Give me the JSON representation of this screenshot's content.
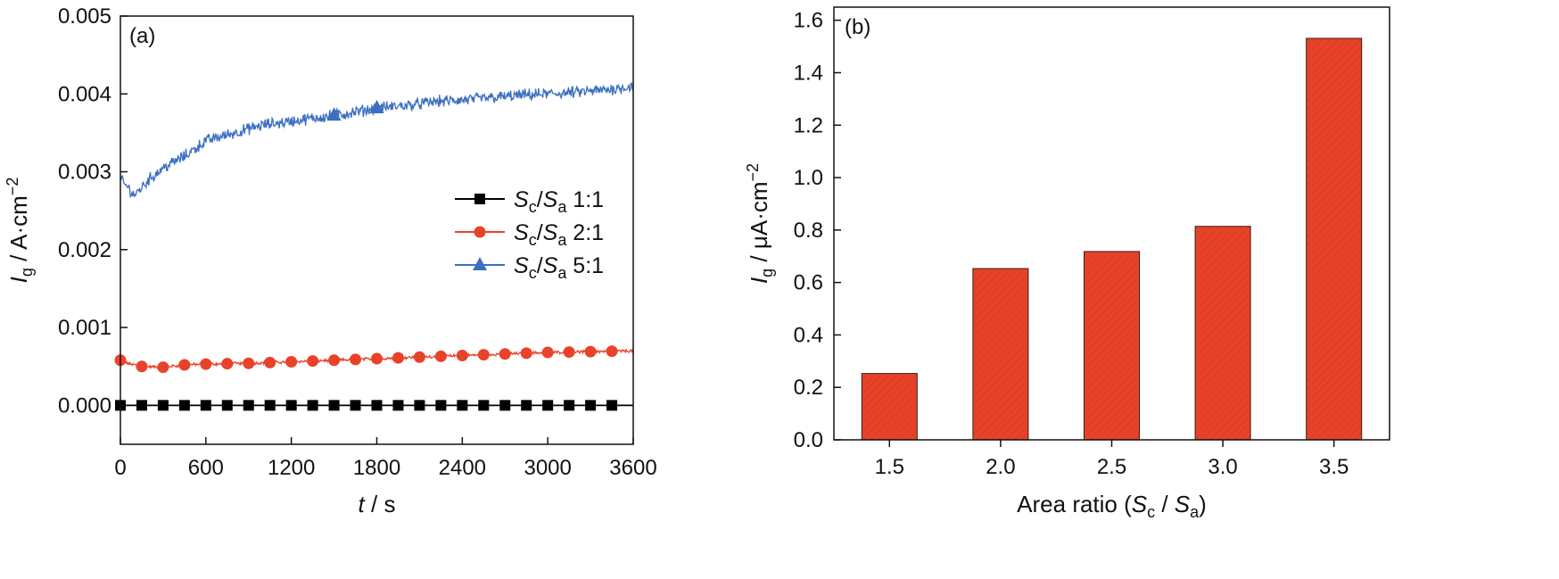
{
  "chart_data": [
    {
      "type": "line",
      "panel_label": "(a)",
      "xlabel": {
        "var": "t",
        "unit": " / s"
      },
      "ylabel": {
        "var": "I",
        "sub": "g",
        "unit": " / A·cm",
        "sup": "−2"
      },
      "xlim": [
        0,
        3600
      ],
      "ylim": [
        -0.0005,
        0.005
      ],
      "x_ticks": [
        "0",
        "600",
        "1200",
        "1800",
        "2400",
        "3000",
        "3600"
      ],
      "y_ticks": [
        "0.000",
        "0.001",
        "0.002",
        "0.003",
        "0.004",
        "0.005"
      ],
      "grid": false,
      "legend_position": "center-right",
      "series": [
        {
          "name": "Sc/Sa 1:1",
          "legend": {
            "S1": "S",
            "sub1": "c",
            "slash": "/",
            "S2": "S",
            "sub2": "a",
            "ratio": " 1:1"
          },
          "color": "#000000",
          "marker": "square",
          "noise": 0,
          "x": [
            0,
            3600
          ],
          "y": [
            0.0,
            0.0
          ],
          "marker_x": [
            0,
            150,
            300,
            450,
            600,
            750,
            900,
            1050,
            1200,
            1350,
            1500,
            1650,
            1800,
            1950,
            2100,
            2250,
            2400,
            2550,
            2700,
            2850,
            3000,
            3150,
            3300,
            3450
          ]
        },
        {
          "name": "Sc/Sa 2:1",
          "legend": {
            "S1": "S",
            "sub1": "c",
            "slash": "/",
            "S2": "S",
            "sub2": "a",
            "ratio": " 2:1"
          },
          "color": "#e8432a",
          "marker": "circle",
          "noise": 1.5e-05,
          "x": [
            0,
            50,
            150,
            300,
            450,
            600,
            900,
            1200,
            1500,
            1800,
            2100,
            2400,
            2700,
            3000,
            3300,
            3600
          ],
          "y": [
            0.00058,
            0.00054,
            0.0005,
            0.00049,
            0.00052,
            0.00053,
            0.00054,
            0.00056,
            0.00058,
            0.0006,
            0.00062,
            0.00064,
            0.00066,
            0.00068,
            0.00069,
            0.0007
          ],
          "marker_x": [
            0,
            150,
            300,
            450,
            600,
            750,
            900,
            1050,
            1200,
            1350,
            1500,
            1650,
            1800,
            1950,
            2100,
            2250,
            2400,
            2550,
            2700,
            2850,
            3000,
            3150,
            3300,
            3450
          ]
        },
        {
          "name": "Sc/Sa 5:1",
          "legend": {
            "S1": "S",
            "sub1": "c",
            "slash": "/",
            "S2": "S",
            "sub2": "a",
            "ratio": " 5:1"
          },
          "color": "#3d6fc1",
          "marker": "triangle",
          "noise": 6e-05,
          "x": [
            0,
            50,
            100,
            200,
            300,
            450,
            600,
            800,
            1000,
            1200,
            1400,
            1600,
            1800,
            2000,
            2200,
            2400,
            2600,
            2800,
            3000,
            3200,
            3400,
            3600
          ],
          "y": [
            0.0029,
            0.0028,
            0.0027,
            0.0029,
            0.00305,
            0.0032,
            0.0034,
            0.0035,
            0.0036,
            0.00365,
            0.0037,
            0.00375,
            0.00382,
            0.00385,
            0.0039,
            0.00392,
            0.00395,
            0.00398,
            0.004,
            0.00402,
            0.00405,
            0.0041
          ],
          "marker_x": [
            1500,
            1800
          ]
        }
      ]
    },
    {
      "type": "bar",
      "panel_label": "(b)",
      "xlabel": {
        "text": "Area ratio (",
        "S1": "S",
        "sub1": "c",
        "mid": " / ",
        "S2": "S",
        "sub2": "a",
        "end": ")"
      },
      "ylabel": {
        "var": "I",
        "sub": "g",
        "unit": " / μA·cm",
        "sup": "−2"
      },
      "categories": [
        "1.5",
        "2.0",
        "2.5",
        "3.0",
        "3.5"
      ],
      "values": [
        0.253,
        0.653,
        0.718,
        0.814,
        1.531
      ],
      "ylim": [
        0,
        1.65
      ],
      "y_ticks": [
        "0.0",
        "0.2",
        "0.4",
        "0.6",
        "0.8",
        "1.0",
        "1.2",
        "1.4",
        "1.6"
      ],
      "grid": false,
      "bar_color": "#e8432a"
    }
  ]
}
